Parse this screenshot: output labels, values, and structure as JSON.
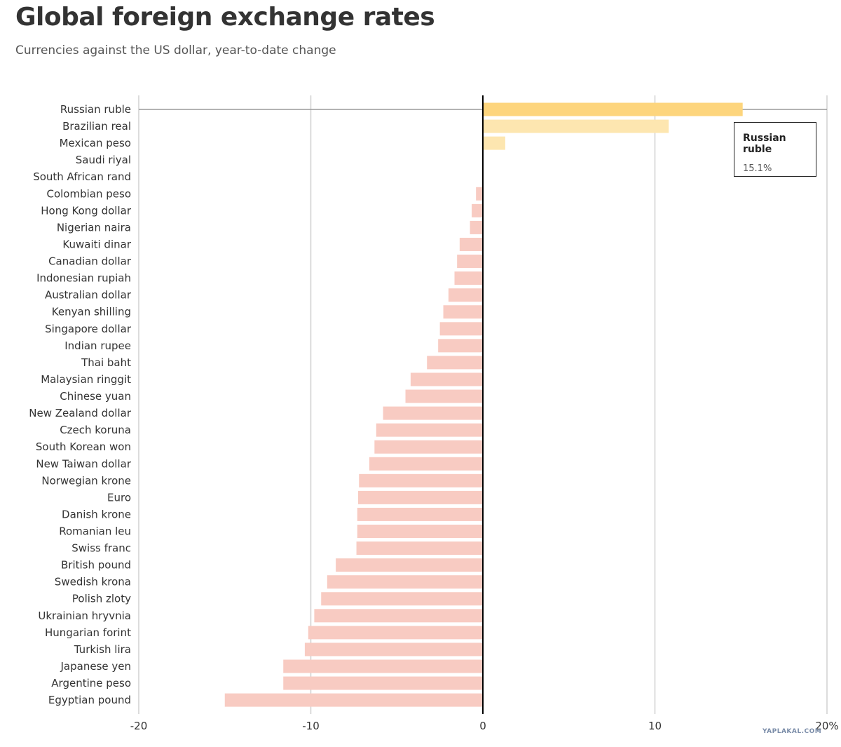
{
  "title": "Global foreign exchange rates",
  "subtitle": "Currencies against the US dollar, year-to-date change",
  "tooltip": {
    "name": "Russian ruble",
    "value": "15.1%"
  },
  "watermark": "YAPLAKAL.COM",
  "colors": {
    "positive_highlight": "#fdd57d",
    "positive": "#fde6b0",
    "negative": "#f8cbc2",
    "grid": "#d0d0d0",
    "zero_line": "#000000"
  },
  "chart_data": {
    "type": "bar",
    "orientation": "horizontal",
    "title": "Global foreign exchange rates",
    "subtitle": "Currencies against the US dollar, year-to-date change",
    "xlim": [
      -20,
      20
    ],
    "grid": true,
    "ticks": [
      "-20",
      "-10",
      "0",
      "10",
      "20%"
    ],
    "tick_values": [
      -20,
      -10,
      0,
      10,
      20
    ],
    "highlighted": "Russian ruble",
    "categories": [
      "Russian ruble",
      "Brazilian real",
      "Mexican peso",
      "Saudi riyal",
      "South African rand",
      "Colombian peso",
      "Hong Kong dollar",
      "Nigerian naira",
      "Kuwaiti dinar",
      "Canadian dollar",
      "Indonesian rupiah",
      "Australian dollar",
      "Kenyan shilling",
      "Singapore dollar",
      "Indian rupee",
      "Thai baht",
      "Malaysian ringgit",
      "Chinese yuan",
      "New Zealand dollar",
      "Czech koruna",
      "South Korean won",
      "New Taiwan dollar",
      "Norwegian krone",
      "Euro",
      "Danish krone",
      "Romanian leu",
      "Swiss franc",
      "British pound",
      "Swedish krona",
      "Polish zloty",
      "Ukrainian hryvnia",
      "Hungarian forint",
      "Turkish lira",
      "Japanese yen",
      "Argentine peso",
      "Egyptian pound"
    ],
    "values": [
      15.1,
      10.8,
      1.3,
      0.0,
      0.0,
      -0.4,
      -0.65,
      -0.75,
      -1.35,
      -1.5,
      -1.65,
      -2.0,
      -2.3,
      -2.5,
      -2.6,
      -3.25,
      -4.2,
      -4.5,
      -5.8,
      -6.2,
      -6.3,
      -6.6,
      -7.2,
      -7.25,
      -7.3,
      -7.3,
      -7.35,
      -8.55,
      -9.05,
      -9.4,
      -9.8,
      -10.15,
      -10.35,
      -11.6,
      -11.6,
      -15.0
    ]
  }
}
